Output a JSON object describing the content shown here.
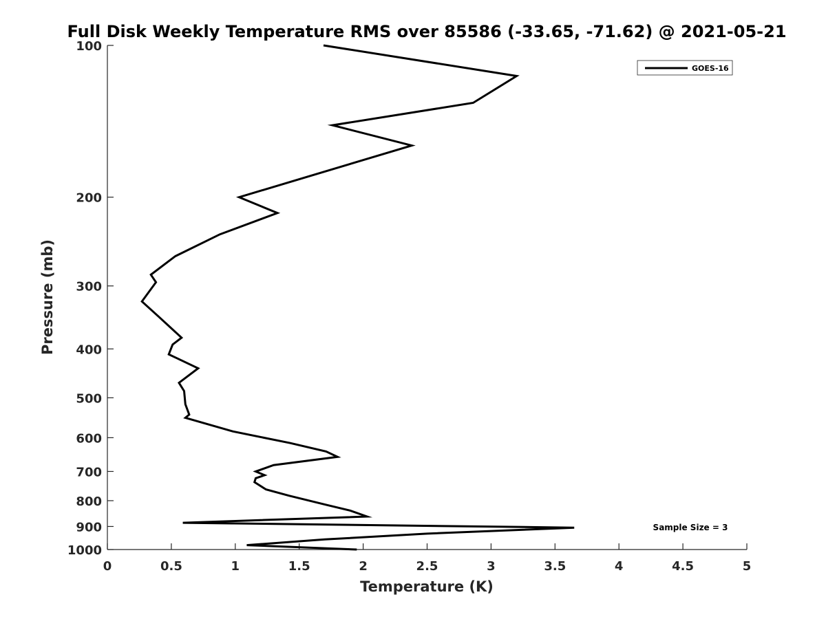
{
  "chart_data": {
    "type": "line",
    "title": "Full Disk Weekly Temperature RMS over 85586 (-33.65, -71.62) @ 2021-05-21",
    "xlabel": "Temperature (K)",
    "ylabel": "Pressure (mb)",
    "xlim": [
      0,
      5
    ],
    "ylim": [
      1000,
      100
    ],
    "yscale": "log",
    "y_reversed": true,
    "xticks": [
      0,
      0.5,
      1,
      1.5,
      2,
      2.5,
      3,
      3.5,
      4,
      4.5,
      5
    ],
    "xtick_labels": [
      "0",
      "0.5",
      "1",
      "1.5",
      "2",
      "2.5",
      "3",
      "3.5",
      "4",
      "4.5",
      "5"
    ],
    "yticks": [
      100,
      200,
      300,
      400,
      500,
      600,
      700,
      800,
      900,
      1000
    ],
    "ytick_labels": [
      "100",
      "200",
      "300",
      "400",
      "500",
      "600",
      "700",
      "800",
      "900",
      "1000"
    ],
    "grid": false,
    "legend_position": "top-right",
    "annotation": "Sample Size = 3",
    "series": [
      {
        "name": "GOES-16",
        "color": "#000000",
        "x": [
          1.69,
          3.2,
          2.86,
          1.76,
          2.38,
          1.03,
          1.33,
          0.88,
          0.53,
          0.34,
          0.38,
          0.27,
          0.4,
          0.58,
          0.51,
          0.48,
          0.71,
          0.56,
          0.6,
          0.61,
          0.64,
          0.61,
          0.98,
          1.43,
          1.71,
          1.8,
          1.3,
          1.16,
          1.23,
          1.16,
          1.15,
          1.24,
          1.42,
          1.71,
          1.9,
          2.03,
          0.59,
          3.65,
          2.5,
          1.7,
          1.09,
          1.95
        ],
        "y": [
          100,
          115,
          130,
          144,
          158,
          200,
          215,
          237,
          262,
          285,
          295,
          322,
          345,
          380,
          392,
          410,
          437,
          467,
          485,
          515,
          540,
          548,
          583,
          615,
          639,
          655,
          680,
          700,
          712,
          722,
          735,
          760,
          782,
          815,
          837,
          860,
          885,
          905,
          930,
          955,
          980,
          1000
        ]
      }
    ]
  }
}
